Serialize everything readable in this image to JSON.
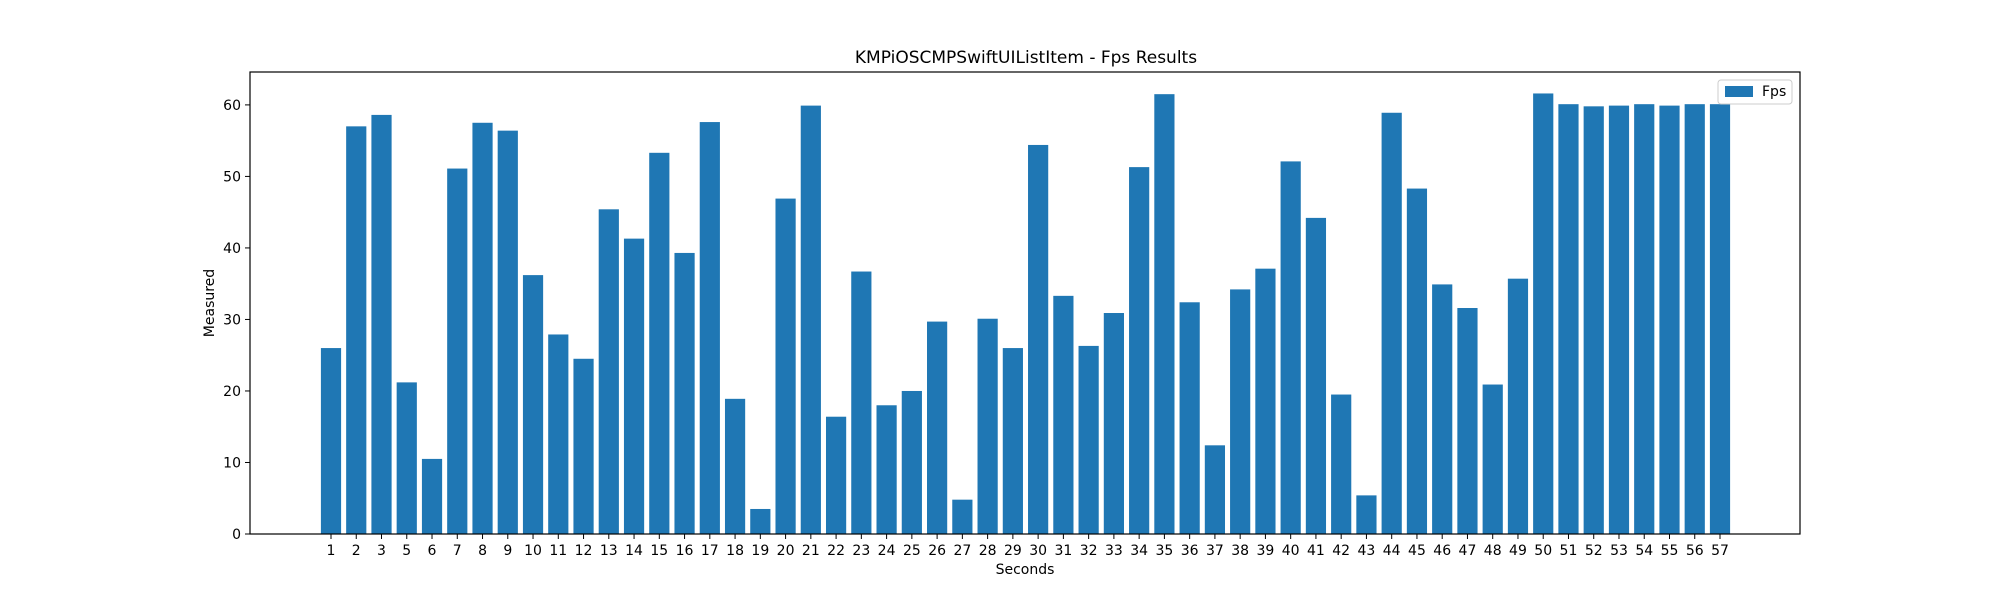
{
  "chart_data": {
    "type": "bar",
    "title": "KMPiOSCMPSwiftUIListItem - Fps Results",
    "xlabel": "Seconds",
    "ylabel": "Measured",
    "ylim": [
      0,
      64.6
    ],
    "yticks": [
      0,
      10,
      20,
      30,
      40,
      50,
      60
    ],
    "grid": false,
    "legend_position": "top-right",
    "categories": [
      "1",
      "2",
      "3",
      "5",
      "6",
      "7",
      "8",
      "9",
      "10",
      "11",
      "12",
      "13",
      "14",
      "15",
      "16",
      "17",
      "18",
      "19",
      "20",
      "21",
      "22",
      "23",
      "24",
      "25",
      "26",
      "27",
      "28",
      "29",
      "30",
      "31",
      "32",
      "33",
      "34",
      "35",
      "36",
      "37",
      "38",
      "39",
      "40",
      "41",
      "42",
      "43",
      "44",
      "45",
      "46",
      "47",
      "48",
      "49",
      "50",
      "51",
      "52",
      "53",
      "54",
      "55",
      "56",
      "57"
    ],
    "series": [
      {
        "name": "Fps",
        "color": "#1f77b4",
        "values": [
          26.0,
          57.0,
          58.6,
          21.2,
          10.5,
          51.1,
          57.5,
          56.4,
          36.2,
          27.9,
          24.5,
          45.4,
          41.3,
          53.3,
          39.3,
          57.6,
          18.9,
          3.5,
          46.9,
          59.9,
          16.4,
          36.7,
          18.0,
          20.0,
          29.7,
          4.8,
          30.1,
          26.0,
          54.4,
          33.3,
          26.3,
          30.9,
          51.3,
          61.5,
          32.4,
          12.4,
          34.2,
          37.1,
          52.1,
          44.2,
          19.5,
          5.4,
          58.9,
          48.3,
          34.9,
          31.6,
          20.9,
          35.7,
          61.6,
          60.1,
          59.8,
          59.9,
          60.1,
          59.9,
          60.1,
          60.1
        ]
      }
    ]
  }
}
